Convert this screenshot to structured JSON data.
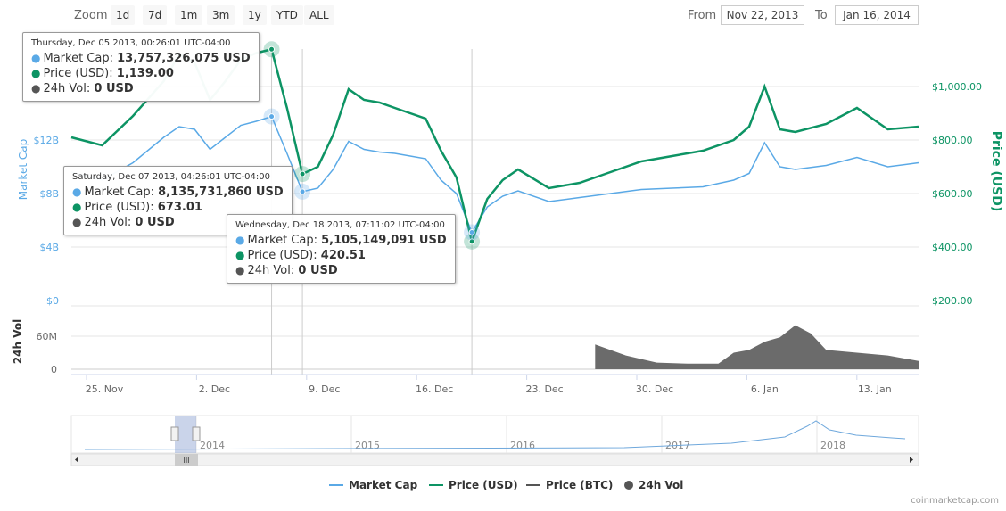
{
  "toolbar": {
    "zoom_label": "Zoom",
    "zoom_buttons": [
      "1d",
      "7d",
      "1m",
      "3m",
      "1y",
      "YTD",
      "ALL"
    ],
    "from_label": "From",
    "from_value": "Nov 22, 2013",
    "to_label": "To",
    "to_value": "Jan 16, 2014"
  },
  "colors": {
    "market_cap": "#5aa9e6",
    "price_usd": "#0d9464",
    "price_btc": "#555555",
    "volume": "#6b6b6b"
  },
  "chart_data": {
    "type": "line",
    "x_range": [
      "2013-11-22",
      "2014-01-16"
    ],
    "x_ticks": [
      "25. Nov",
      "2. Dec",
      "9. Dec",
      "16. Dec",
      "23. Dec",
      "30. Dec",
      "6. Jan",
      "13. Jan"
    ],
    "y_left": {
      "label": "Market Cap",
      "ticks": [
        "$0",
        "$4B",
        "$8B",
        "$12B"
      ]
    },
    "y_right": {
      "label": "Price (USD)",
      "ticks": [
        "$200.00",
        "$400.00",
        "$600.00",
        "$800.00",
        "$1,000.00"
      ]
    },
    "volume_axis": {
      "label": "24h Vol",
      "ticks": [
        "0",
        "60M"
      ]
    },
    "series": [
      {
        "name": "Market Cap",
        "x": [
          "2013-11-22",
          "2013-11-24",
          "2013-11-26",
          "2013-11-28",
          "2013-11-29",
          "2013-11-30",
          "2013-12-01",
          "2013-12-02",
          "2013-12-03",
          "2013-12-04",
          "2013-12-05",
          "2013-12-06",
          "2013-12-07",
          "2013-12-08",
          "2013-12-09",
          "2013-12-10",
          "2013-12-11",
          "2013-12-12",
          "2013-12-13",
          "2013-12-14",
          "2013-12-15",
          "2013-12-16",
          "2013-12-17",
          "2013-12-18",
          "2013-12-19",
          "2013-12-20",
          "2013-12-21",
          "2013-12-23",
          "2013-12-25",
          "2013-12-27",
          "2013-12-29",
          "2013-12-31",
          "2014-01-02",
          "2014-01-04",
          "2014-01-05",
          "2014-01-06",
          "2014-01-07",
          "2014-01-08",
          "2014-01-10",
          "2014-01-12",
          "2014-01-14",
          "2014-01-16"
        ],
        "values": [
          9.6,
          9.0,
          10.3,
          12.2,
          13.0,
          12.8,
          11.3,
          12.2,
          13.1,
          13.4,
          13.76,
          11.0,
          8.14,
          8.4,
          9.8,
          11.9,
          11.3,
          11.1,
          11.0,
          10.8,
          10.6,
          9.0,
          8.0,
          5.1,
          7.0,
          7.8,
          8.2,
          7.4,
          7.7,
          8.0,
          8.3,
          8.4,
          8.5,
          9.0,
          9.5,
          11.8,
          10.0,
          9.8,
          10.1,
          10.7,
          10.0,
          10.3
        ]
      },
      {
        "name": "Price (USD)",
        "x": [
          "2013-11-22",
          "2013-11-24",
          "2013-11-26",
          "2013-11-28",
          "2013-11-29",
          "2013-11-30",
          "2013-12-01",
          "2013-12-02",
          "2013-12-03",
          "2013-12-04",
          "2013-12-05",
          "2013-12-06",
          "2013-12-07",
          "2013-12-08",
          "2013-12-09",
          "2013-12-10",
          "2013-12-11",
          "2013-12-12",
          "2013-12-13",
          "2013-12-14",
          "2013-12-15",
          "2013-12-16",
          "2013-12-17",
          "2013-12-18",
          "2013-12-19",
          "2013-12-20",
          "2013-12-21",
          "2013-12-23",
          "2013-12-25",
          "2013-12-27",
          "2013-12-29",
          "2013-12-31",
          "2014-01-02",
          "2014-01-04",
          "2014-01-05",
          "2014-01-06",
          "2014-01-07",
          "2014-01-08",
          "2014-01-10",
          "2014-01-12",
          "2014-01-14",
          "2014-01-16"
        ],
        "values": [
          810,
          780,
          890,
          1020,
          1120,
          1090,
          950,
          1020,
          1100,
          1125,
          1139,
          920,
          673,
          700,
          820,
          990,
          950,
          940,
          920,
          900,
          880,
          760,
          660,
          420.51,
          580,
          650,
          690,
          620,
          640,
          680,
          720,
          740,
          760,
          800,
          850,
          1000,
          840,
          830,
          860,
          920,
          840,
          850
        ]
      }
    ],
    "volume": {
      "x": [
        "2013-12-26",
        "2013-12-28",
        "2013-12-30",
        "2014-01-01",
        "2014-01-03",
        "2014-01-04",
        "2014-01-05",
        "2014-01-06",
        "2014-01-07",
        "2014-01-08",
        "2014-01-09",
        "2014-01-10",
        "2014-01-12",
        "2014-01-14",
        "2014-01-16"
      ],
      "values": [
        45,
        25,
        12,
        10,
        10,
        30,
        35,
        50,
        58,
        80,
        65,
        35,
        30,
        25,
        15
      ]
    },
    "tooltips": [
      {
        "date": "Thursday, Dec 05 2013, 00:26:01 UTC-04:00",
        "market_cap": "13,757,326,075 USD",
        "price_usd": "1,139.00",
        "vol": "0 USD"
      },
      {
        "date": "Saturday, Dec 07 2013, 04:26:01 UTC-04:00",
        "market_cap": "8,135,731,860 USD",
        "price_usd": "673.01",
        "vol": "0 USD"
      },
      {
        "date": "Wednesday, Dec 18 2013, 07:11:02 UTC-04:00",
        "market_cap": "5,105,149,091 USD",
        "price_usd": "420.51",
        "vol": "0 USD"
      }
    ],
    "tooltip_labels": {
      "market_cap": "Market Cap:",
      "price_usd": "Price (USD):",
      "vol": "24h Vol:"
    },
    "navigator": {
      "year_labels": [
        "2014",
        "2015",
        "2016",
        "2017",
        "2018"
      ],
      "handle_glyph": "III"
    },
    "legend": [
      "Market Cap",
      "Price (USD)",
      "Price (BTC)",
      "24h Vol"
    ]
  },
  "credit": "coinmarketcap.com"
}
